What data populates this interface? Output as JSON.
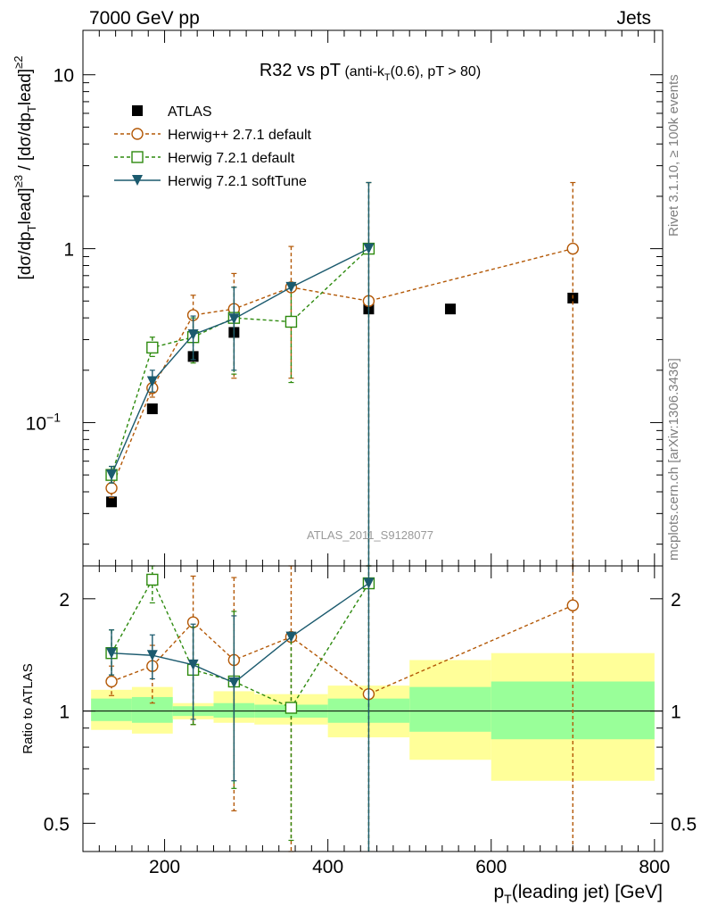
{
  "header": {
    "left": "7000 GeV pp",
    "right": "Jets",
    "side_top": "Rivet 3.1.10, ≥ 100k events",
    "side_bottom": "mcplots.cern.ch [arXiv:1306.3436]"
  },
  "chart_data": [
    {
      "type": "scatter",
      "title_main": "R32 vs pT",
      "title_detail": "(anti-k",
      "title_detail_sub": "T",
      "title_detail_tail": "(0.6), pT > 80)",
      "watermark": "ATLAS_2011_S9128077",
      "yscale": "log",
      "ylim": [
        0.015,
        18
      ],
      "xlim": [
        100,
        810
      ],
      "ylabel": "[dσ/dp_T^lead]^{≥3} / [dσ/dp_T^lead]^{≥2}",
      "yticks": [
        {
          "value": 10,
          "label": "10"
        },
        {
          "value": 1,
          "label": "1"
        },
        {
          "value": 0.1,
          "label": "10",
          "exp": "−1"
        }
      ],
      "legend_position": "top-left",
      "series": [
        {
          "name": "ATLAS",
          "color": "#000000",
          "marker": "square-filled",
          "line": "none",
          "x": [
            135,
            185,
            235,
            285,
            355,
            450,
            550,
            700
          ],
          "y": [
            0.035,
            0.12,
            0.24,
            0.33,
            0.38,
            0.45,
            0.45,
            0.52
          ]
        },
        {
          "name": "Herwig++ 2.7.1 default",
          "color": "#b35806",
          "marker": "circle-open",
          "line": "dashed",
          "x": [
            135,
            185,
            235,
            285,
            355,
            450,
            700
          ],
          "y": [
            0.042,
            0.158,
            0.415,
            0.45,
            0.6,
            0.5,
            1.0
          ],
          "err_lo": [
            0.037,
            0.14,
            0.31,
            0.18,
            0.18,
            0.0,
            0.0
          ],
          "err_hi": [
            0.047,
            0.175,
            0.54,
            0.72,
            1.03,
            2.4,
            2.4
          ]
        },
        {
          "name": "Herwig 7.2.1 default",
          "color": "#2d8a0e",
          "marker": "square-open",
          "line": "dashed",
          "x": [
            135,
            185,
            235,
            285,
            355,
            450
          ],
          "y": [
            0.05,
            0.27,
            0.31,
            0.4,
            0.38,
            1.0
          ],
          "err_lo": [
            0.045,
            0.24,
            0.22,
            0.19,
            0.17,
            0.0
          ],
          "err_hi": [
            0.056,
            0.31,
            0.4,
            0.6,
            0.6,
            2.4
          ]
        },
        {
          "name": "Herwig 7.2.1 softTune",
          "color": "#1b5a6e",
          "marker": "triangle-down-filled",
          "line": "solid",
          "x": [
            135,
            185,
            235,
            285,
            355,
            450
          ],
          "y": [
            0.05,
            0.172,
            0.32,
            0.395,
            0.6,
            1.0
          ],
          "err_lo": [
            0.045,
            0.15,
            0.23,
            0.2,
            0.6,
            0.0
          ],
          "err_hi": [
            0.056,
            0.2,
            0.41,
            0.6,
            0.6,
            2.4
          ]
        }
      ]
    },
    {
      "type": "scatter",
      "ylabel": "Ratio to ATLAS",
      "xlabel_main": "p",
      "xlabel_sub": "T",
      "xlabel_tail": "(leading jet) [GeV]",
      "yscale": "log",
      "ylim": [
        0.42,
        2.45
      ],
      "xlim": [
        100,
        810
      ],
      "xticks": [
        {
          "value": 200,
          "label": "200"
        },
        {
          "value": 400,
          "label": "400"
        },
        {
          "value": 600,
          "label": "600"
        },
        {
          "value": 800,
          "label": "800"
        }
      ],
      "yticks": [
        {
          "value": 2,
          "label": "2"
        },
        {
          "value": 1,
          "label": "1"
        },
        {
          "value": 0.5,
          "label": "0.5"
        }
      ],
      "reference_line": 1,
      "bands": [
        {
          "x0": 110,
          "x1": 160,
          "green": [
            0.94,
            1.08
          ],
          "yellow": [
            0.89,
            1.14
          ]
        },
        {
          "x0": 160,
          "x1": 210,
          "green": [
            0.93,
            1.09
          ],
          "yellow": [
            0.87,
            1.16
          ]
        },
        {
          "x0": 210,
          "x1": 260,
          "green": [
            0.97,
            1.03
          ],
          "yellow": [
            0.95,
            1.05
          ]
        },
        {
          "x0": 260,
          "x1": 310,
          "green": [
            0.96,
            1.05
          ],
          "yellow": [
            0.93,
            1.13
          ]
        },
        {
          "x0": 310,
          "x1": 400,
          "green": [
            0.96,
            1.04
          ],
          "yellow": [
            0.92,
            1.11
          ]
        },
        {
          "x0": 400,
          "x1": 500,
          "green": [
            0.93,
            1.08
          ],
          "yellow": [
            0.85,
            1.17
          ]
        },
        {
          "x0": 500,
          "x1": 600,
          "green": [
            0.88,
            1.16
          ],
          "yellow": [
            0.74,
            1.37
          ]
        },
        {
          "x0": 600,
          "x1": 800,
          "green": [
            0.84,
            1.2
          ],
          "yellow": [
            0.65,
            1.43
          ]
        }
      ],
      "series": [
        {
          "name": "Herwig++ 2.7.1 default",
          "color": "#b35806",
          "marker": "circle-open",
          "line": "dashed",
          "x": [
            135,
            185,
            235,
            285,
            355,
            450,
            700
          ],
          "y": [
            1.2,
            1.32,
            1.73,
            1.37,
            1.58,
            1.11,
            1.92
          ],
          "err_lo": [
            1.1,
            1.05,
            0.92,
            0.54,
            0.36,
            0.0,
            0.0
          ],
          "err_hi": [
            1.32,
            1.5,
            2.3,
            2.28,
            2.5,
            2.5,
            2.5
          ]
        },
        {
          "name": "Herwig 7.2.1 default",
          "color": "#2d8a0e",
          "marker": "square-open",
          "line": "dashed",
          "x": [
            135,
            185,
            235,
            285,
            355,
            450
          ],
          "y": [
            1.43,
            2.25,
            1.29,
            1.2,
            1.02,
            2.2
          ],
          "err_lo": [
            1.25,
            1.95,
            0.92,
            0.62,
            0.45,
            0.0
          ],
          "err_hi": [
            1.65,
            2.5,
            1.68,
            1.85,
            1.6,
            2.5
          ]
        },
        {
          "name": "Herwig 7.2.1 softTune",
          "color": "#1b5a6e",
          "marker": "triangle-down-filled",
          "line": "solid",
          "x": [
            135,
            185,
            235,
            285,
            355,
            450
          ],
          "y": [
            1.43,
            1.41,
            1.33,
            1.19,
            1.58,
            2.2
          ],
          "err_lo": [
            1.25,
            1.22,
            0.95,
            0.65,
            1.58,
            0.0
          ],
          "err_hi": [
            1.65,
            1.6,
            1.71,
            1.8,
            1.58,
            2.5
          ]
        }
      ]
    }
  ]
}
